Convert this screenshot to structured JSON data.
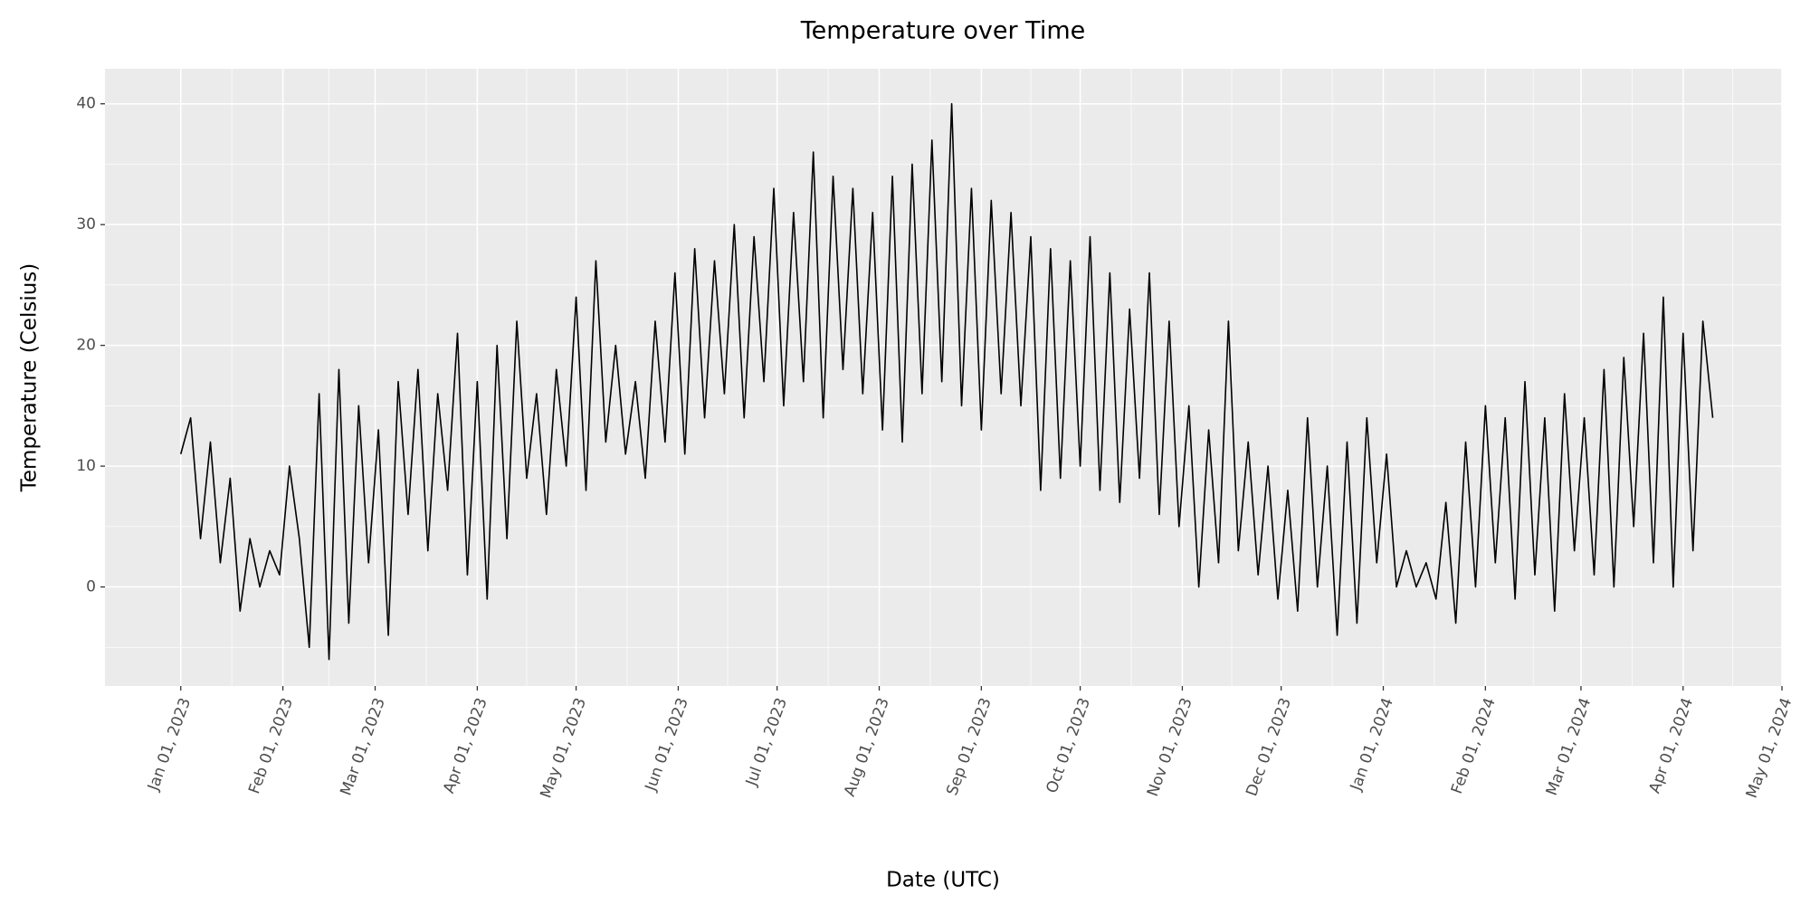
{
  "chart_data": {
    "type": "line",
    "title": "Temperature over Time",
    "x_label": "Date (UTC)",
    "y_label": "Temperature (Celsius)",
    "color": "#000000",
    "grid": true,
    "minor_grid": true,
    "xlim": [
      "2022-12-09",
      "2024-05-01"
    ],
    "xticks": [
      {
        "value": "2023-01-01",
        "label": "Jan 01, 2023"
      },
      {
        "value": "2023-02-01",
        "label": "Feb 01, 2023"
      },
      {
        "value": "2023-03-01",
        "label": "Mar 01, 2023"
      },
      {
        "value": "2023-04-01",
        "label": "Apr 01, 2023"
      },
      {
        "value": "2023-05-01",
        "label": "May 01, 2023"
      },
      {
        "value": "2023-06-01",
        "label": "Jun 01, 2023"
      },
      {
        "value": "2023-07-01",
        "label": "Jul 01, 2023"
      },
      {
        "value": "2023-08-01",
        "label": "Aug 01, 2023"
      },
      {
        "value": "2023-09-01",
        "label": "Sep 01, 2023"
      },
      {
        "value": "2023-10-01",
        "label": "Oct 01, 2023"
      },
      {
        "value": "2023-11-01",
        "label": "Nov 01, 2023"
      },
      {
        "value": "2023-12-01",
        "label": "Dec 01, 2023"
      },
      {
        "value": "2024-01-01",
        "label": "Jan 01, 2024"
      },
      {
        "value": "2024-02-01",
        "label": "Feb 01, 2024"
      },
      {
        "value": "2024-03-01",
        "label": "Mar 01, 2024"
      },
      {
        "value": "2024-04-01",
        "label": "Apr 01, 2024"
      },
      {
        "value": "2024-05-01",
        "label": "May 01, 2024"
      }
    ],
    "ylim": [
      -8.2,
      42.9
    ],
    "yticks": [
      0,
      10,
      20,
      30,
      40
    ],
    "x": [
      "2023-01-01",
      "2023-01-04",
      "2023-01-07",
      "2023-01-10",
      "2023-01-13",
      "2023-01-16",
      "2023-01-19",
      "2023-01-22",
      "2023-01-25",
      "2023-01-28",
      "2023-01-31",
      "2023-02-03",
      "2023-02-06",
      "2023-02-09",
      "2023-02-12",
      "2023-02-15",
      "2023-02-18",
      "2023-02-21",
      "2023-02-24",
      "2023-02-27",
      "2023-03-02",
      "2023-03-05",
      "2023-03-08",
      "2023-03-11",
      "2023-03-14",
      "2023-03-17",
      "2023-03-20",
      "2023-03-23",
      "2023-03-26",
      "2023-03-29",
      "2023-04-01",
      "2023-04-04",
      "2023-04-07",
      "2023-04-10",
      "2023-04-13",
      "2023-04-16",
      "2023-04-19",
      "2023-04-22",
      "2023-04-25",
      "2023-04-28",
      "2023-05-01",
      "2023-05-04",
      "2023-05-07",
      "2023-05-10",
      "2023-05-13",
      "2023-05-16",
      "2023-05-19",
      "2023-05-22",
      "2023-05-25",
      "2023-05-28",
      "2023-05-31",
      "2023-06-03",
      "2023-06-06",
      "2023-06-09",
      "2023-06-12",
      "2023-06-15",
      "2023-06-18",
      "2023-06-21",
      "2023-06-24",
      "2023-06-27",
      "2023-06-30",
      "2023-07-03",
      "2023-07-06",
      "2023-07-09",
      "2023-07-12",
      "2023-07-15",
      "2023-07-18",
      "2023-07-21",
      "2023-07-24",
      "2023-07-27",
      "2023-07-30",
      "2023-08-02",
      "2023-08-05",
      "2023-08-08",
      "2023-08-11",
      "2023-08-14",
      "2023-08-17",
      "2023-08-20",
      "2023-08-23",
      "2023-08-26",
      "2023-08-29",
      "2023-09-01",
      "2023-09-04",
      "2023-09-07",
      "2023-09-10",
      "2023-09-13",
      "2023-09-16",
      "2023-09-19",
      "2023-09-22",
      "2023-09-25",
      "2023-09-28",
      "2023-10-01",
      "2023-10-04",
      "2023-10-07",
      "2023-10-10",
      "2023-10-13",
      "2023-10-16",
      "2023-10-19",
      "2023-10-22",
      "2023-10-25",
      "2023-10-28",
      "2023-10-31",
      "2023-11-03",
      "2023-11-06",
      "2023-11-09",
      "2023-11-12",
      "2023-11-15",
      "2023-11-18",
      "2023-11-21",
      "2023-11-24",
      "2023-11-27",
      "2023-11-30",
      "2023-12-03",
      "2023-12-06",
      "2023-12-09",
      "2023-12-12",
      "2023-12-15",
      "2023-12-18",
      "2023-12-21",
      "2023-12-24",
      "2023-12-27",
      "2023-12-30",
      "2024-01-02",
      "2024-01-05",
      "2024-01-08",
      "2024-01-11",
      "2024-01-14",
      "2024-01-17",
      "2024-01-20",
      "2024-01-23",
      "2024-01-26",
      "2024-01-29",
      "2024-02-01",
      "2024-02-04",
      "2024-02-07",
      "2024-02-10",
      "2024-02-13",
      "2024-02-16",
      "2024-02-19",
      "2024-02-22",
      "2024-02-25",
      "2024-02-28",
      "2024-03-02",
      "2024-03-05",
      "2024-03-08",
      "2024-03-11",
      "2024-03-14",
      "2024-03-17",
      "2024-03-20",
      "2024-03-23",
      "2024-03-26",
      "2024-03-29",
      "2024-04-01",
      "2024-04-04",
      "2024-04-07",
      "2024-04-10"
    ],
    "values": [
      11,
      14,
      4,
      12,
      2,
      9,
      -2,
      4,
      0,
      3,
      1,
      10,
      4,
      -5,
      16,
      -6,
      18,
      -3,
      15,
      2,
      13,
      -4,
      17,
      6,
      18,
      3,
      16,
      8,
      21,
      1,
      17,
      -1,
      20,
      4,
      22,
      9,
      16,
      6,
      18,
      10,
      24,
      8,
      27,
      12,
      20,
      11,
      17,
      9,
      22,
      12,
      26,
      11,
      28,
      14,
      27,
      16,
      30,
      14,
      29,
      17,
      33,
      15,
      31,
      17,
      36,
      14,
      34,
      18,
      33,
      16,
      31,
      13,
      34,
      12,
      35,
      16,
      37,
      17,
      40,
      15,
      33,
      13,
      32,
      16,
      31,
      15,
      29,
      8,
      28,
      9,
      27,
      10,
      29,
      8,
      26,
      7,
      23,
      9,
      26,
      6,
      22,
      5,
      15,
      0,
      13,
      2,
      22,
      3,
      12,
      1,
      10,
      -1,
      8,
      -2,
      14,
      0,
      10,
      -4,
      12,
      -3,
      14,
      2,
      11,
      0,
      3,
      0,
      2,
      -1,
      7,
      -3,
      12,
      0,
      15,
      2,
      14,
      -1,
      17,
      1,
      14,
      -2,
      16,
      3,
      14,
      1,
      18,
      0,
      19,
      5,
      21,
      2,
      24,
      0,
      21,
      3,
      22,
      14
    ]
  }
}
